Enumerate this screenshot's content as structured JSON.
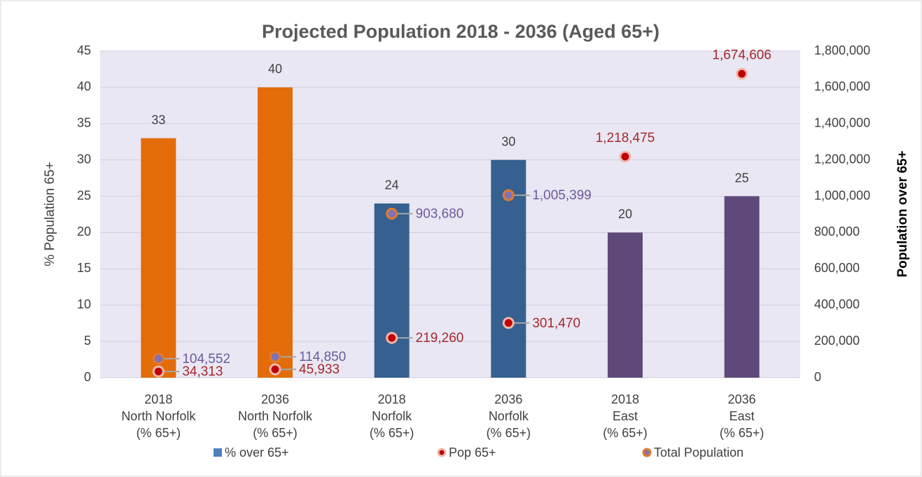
{
  "chart_data": {
    "type": "bar",
    "title": "Projected Population 2018 - 2036 (Aged 65+)",
    "ylabel": "% Population 65+",
    "y2label": "Population over 65+",
    "categories": [
      [
        "2018",
        "North Norfolk",
        "(% 65+)"
      ],
      [
        "2036",
        "North Norfolk",
        "(% 65+)"
      ],
      [
        "2018",
        "Norfolk",
        "(% 65+)"
      ],
      [
        "2036",
        "Norfolk",
        "(% 65+)"
      ],
      [
        "2018",
        "East",
        "(% 65+)"
      ],
      [
        "2036",
        "East",
        "(% 65+)"
      ]
    ],
    "series": [
      {
        "name": "% over 65+",
        "type": "bar",
        "color": "#4f81bd",
        "colors": [
          "#e36c09",
          "#e36c09",
          "#35608f",
          "#35608f",
          "#5f497a",
          "#5f497a"
        ],
        "values": [
          33,
          40,
          24,
          30,
          20,
          25
        ]
      },
      {
        "name": "Pop 65+",
        "type": "scatter",
        "axis": "y2",
        "color": "#c00000",
        "edge": "#f2b8b0",
        "label_color": "#a5282d",
        "values": [
          34313,
          45933,
          219260,
          301470,
          1218475,
          1674606
        ],
        "value_labels": [
          "34,313",
          "45,933",
          "219,260",
          "301,470",
          "1,218,475",
          "1,674,606"
        ]
      },
      {
        "name": "Total Population",
        "type": "scatter",
        "axis": "y2",
        "color": "#8073b5",
        "edge": "#e3792a",
        "label_color": "#6b5b9a",
        "values": [
          104552,
          114850,
          903680,
          1005399,
          null,
          null
        ],
        "value_labels": [
          "104,552",
          "114,850",
          "903,680",
          "1,005,399",
          null,
          null
        ]
      }
    ],
    "ylim": [
      0,
      45
    ],
    "yticks": [
      0,
      5,
      10,
      15,
      20,
      25,
      30,
      35,
      40,
      45
    ],
    "y2lim": [
      0,
      1800000
    ],
    "y2ticks": [
      0,
      {
        "value": 200000,
        "label": "200,000"
      },
      {
        "value": 400000,
        "label": "400,000"
      },
      {
        "value": 600000,
        "label": "600,000"
      },
      {
        "value": 800000,
        "label": "800,000"
      },
      {
        "value": 1000000,
        "label": "1,000,000"
      },
      {
        "value": 1200000,
        "label": "1,200,000"
      },
      {
        "value": 1400000,
        "label": "1,400,000"
      },
      {
        "value": 1600000,
        "label": "1,600,000"
      },
      {
        "value": 1800000,
        "label": "1,800,000"
      }
    ],
    "grid": true,
    "legend": "bottom"
  }
}
